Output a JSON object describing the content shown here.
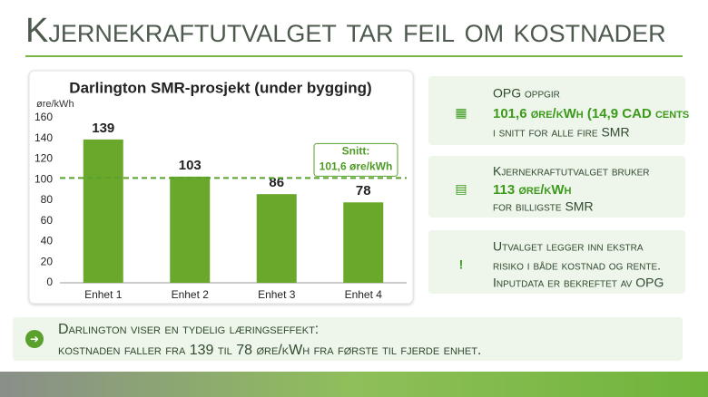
{
  "title": "Kjernekraftutvalget tar feil om kostnader",
  "chart_data": {
    "type": "bar",
    "title": "Darlington SMR-prosjekt (under bygging)",
    "y_label": "øre/kWh",
    "categories": [
      "Enhet 1",
      "Enhet 2",
      "Enhet 3",
      "Enhet 4"
    ],
    "values": [
      139,
      103,
      86,
      78
    ],
    "color": "#6aa82c",
    "ylim": [
      0,
      160
    ],
    "yticks": [
      0,
      20,
      40,
      60,
      80,
      100,
      120,
      140,
      160
    ],
    "grid": false,
    "reference_line": {
      "value": 101.6,
      "label": "Snitt:",
      "value_label": "101,6 øre/kWh",
      "color": "#5aa02c"
    }
  },
  "cards": [
    {
      "icon": "▦",
      "lines": [
        "OPG oppgir",
        "101,6 øre/kWh (14,9 CAD cents",
        "i snitt for alle fire SMR"
      ]
    },
    {
      "icon": "▤",
      "lines": [
        "Kjernekraftutvalget bruker",
        "113 øre/kWh",
        "for billigste SMR"
      ]
    },
    {
      "icon": "!",
      "lines": [
        "Utvalget legger inn ekstra",
        "risiko i både kostnad og rente.",
        "Inputdata er bekreftet av OPG"
      ]
    }
  ],
  "summary": {
    "icon": "➜",
    "lines": [
      "Darlington viser en tydelig læringseffekt:",
      "kostnaden faller fra 139 til 78 øre/kWh fra første til fjerde enhet."
    ]
  }
}
